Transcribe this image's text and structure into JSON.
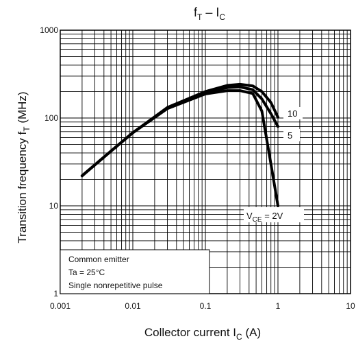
{
  "chart_data": {
    "type": "line",
    "title": "f_T – I_C",
    "xlabel": "Collector current I_C (A)",
    "ylabel": "Transition frequency f_T (MHz)",
    "xscale": "log",
    "yscale": "log",
    "xlim": [
      0.001,
      10
    ],
    "ylim": [
      1,
      1000
    ],
    "grid": true,
    "x_ticks": [
      "0.001",
      "0.01",
      "0.1",
      "1",
      "10"
    ],
    "y_ticks": [
      "1000",
      "100",
      "10",
      "1"
    ],
    "series": [
      {
        "name": "V_CE = 2V",
        "x": [
          0.002,
          0.005,
          0.01,
          0.03,
          0.1,
          0.2,
          0.3,
          0.45,
          0.6,
          0.8,
          1.0
        ],
        "y": [
          22,
          42,
          68,
          128,
          188,
          205,
          205,
          190,
          120,
          30,
          10
        ]
      },
      {
        "name": "5",
        "x": [
          0.002,
          0.005,
          0.01,
          0.03,
          0.1,
          0.2,
          0.3,
          0.45,
          0.6,
          0.8,
          1.0
        ],
        "y": [
          22,
          42,
          68,
          130,
          195,
          222,
          226,
          210,
          165,
          112,
          80
        ]
      },
      {
        "name": "10",
        "x": [
          0.002,
          0.005,
          0.01,
          0.03,
          0.1,
          0.2,
          0.3,
          0.45,
          0.6,
          0.8,
          1.0
        ],
        "y": [
          22,
          42,
          68,
          132,
          200,
          235,
          242,
          232,
          200,
          150,
          102
        ]
      }
    ],
    "annotations": [
      "Common emitter",
      "Ta = 25°C",
      "Single nonrepetitive pulse"
    ]
  }
}
